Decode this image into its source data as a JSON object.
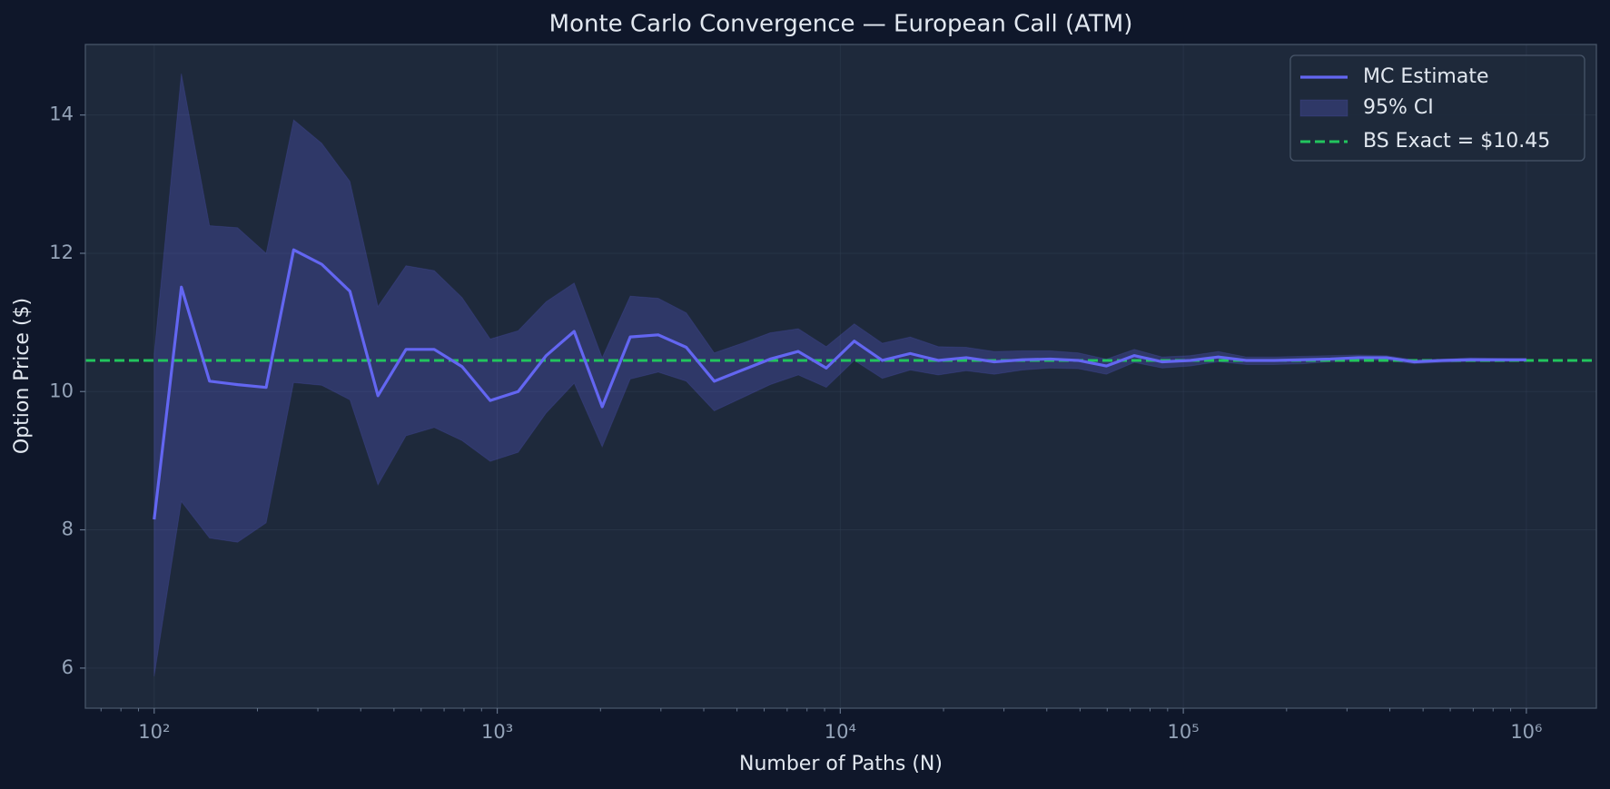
{
  "chart_data": {
    "type": "line",
    "title": "Monte Carlo Convergence — European Call (ATM)",
    "xlabel": "Number of Paths (N)",
    "ylabel": "Option Price ($)",
    "xscale": "log",
    "grid": true,
    "legend_position": "upper-right",
    "x": [
      100,
      120,
      145,
      175,
      212,
      255,
      308,
      372,
      449,
      542,
      655,
      790,
      954,
      1151,
      1389,
      1676,
      2023,
      2442,
      2947,
      3556,
      4291,
      5179,
      6250,
      7543,
      9102,
      10985,
      13257,
      15998,
      19306,
      23299,
      28117,
      33932,
      40949,
      49417,
      59636,
      71968,
      86851,
      104811,
      126485,
      152641,
      184206,
      222299,
      268269,
      323745,
      390693,
      471486,
      568986,
      686648,
      828642,
      1000000
    ],
    "series": [
      {
        "name": "MC Estimate",
        "color": "#6366f1",
        "values": [
          8.15,
          11.51,
          10.15,
          10.1,
          10.06,
          12.05,
          11.84,
          11.45,
          9.94,
          10.61,
          10.61,
          10.36,
          9.87,
          10.0,
          10.52,
          10.87,
          9.78,
          10.79,
          10.82,
          10.64,
          10.15,
          10.31,
          10.47,
          10.58,
          10.34,
          10.73,
          10.45,
          10.55,
          10.45,
          10.49,
          10.43,
          10.46,
          10.47,
          10.45,
          10.37,
          10.52,
          10.43,
          10.45,
          10.5,
          10.45,
          10.45,
          10.46,
          10.47,
          10.49,
          10.49,
          10.43,
          10.45,
          10.46,
          10.46,
          10.46
        ]
      }
    ],
    "ci": {
      "name": "95% CI",
      "color": "#6366f1",
      "lower": [
        5.88,
        8.41,
        7.88,
        7.82,
        8.1,
        10.13,
        10.09,
        9.88,
        8.65,
        9.36,
        9.48,
        9.29,
        8.99,
        9.12,
        9.69,
        10.12,
        9.2,
        10.18,
        10.28,
        10.15,
        9.72,
        9.91,
        10.1,
        10.24,
        10.06,
        10.45,
        10.19,
        10.31,
        10.24,
        10.3,
        10.25,
        10.31,
        10.34,
        10.33,
        10.25,
        10.42,
        10.34,
        10.37,
        10.43,
        10.39,
        10.39,
        10.4,
        10.43,
        10.45,
        10.45,
        10.4,
        10.42,
        10.43,
        10.43,
        10.44
      ],
      "upper": [
        10.55,
        14.6,
        12.4,
        12.37,
        12.0,
        13.93,
        13.59,
        13.04,
        11.23,
        11.82,
        11.75,
        11.36,
        10.76,
        10.88,
        11.3,
        11.57,
        10.49,
        11.38,
        11.35,
        11.14,
        10.56,
        10.7,
        10.85,
        10.91,
        10.65,
        10.98,
        10.7,
        10.79,
        10.65,
        10.64,
        10.58,
        10.59,
        10.59,
        10.56,
        10.47,
        10.61,
        10.5,
        10.52,
        10.58,
        10.5,
        10.5,
        10.51,
        10.52,
        10.53,
        10.52,
        10.46,
        10.47,
        10.49,
        10.48,
        10.47
      ]
    },
    "reference": {
      "name": "BS Exact = $10.45",
      "value": 10.45,
      "color": "#22c55e"
    },
    "xlim": [
      63,
      1600000
    ],
    "ylim": [
      5.42,
      15.02
    ],
    "xticks": [
      {
        "value": 100,
        "label": "10²"
      },
      {
        "value": 1000,
        "label": "10³"
      },
      {
        "value": 10000,
        "label": "10⁴"
      },
      {
        "value": 100000,
        "label": "10⁵"
      },
      {
        "value": 1000000,
        "label": "10⁶"
      }
    ],
    "xminorticks": [
      70,
      80,
      90,
      200,
      300,
      400,
      500,
      600,
      700,
      800,
      900,
      2000,
      3000,
      4000,
      5000,
      6000,
      7000,
      8000,
      9000,
      20000,
      30000,
      40000,
      50000,
      60000,
      70000,
      80000,
      90000,
      200000,
      300000,
      400000,
      500000,
      600000,
      700000,
      800000,
      900000
    ],
    "yticks": [
      6,
      8,
      10,
      12,
      14
    ]
  }
}
